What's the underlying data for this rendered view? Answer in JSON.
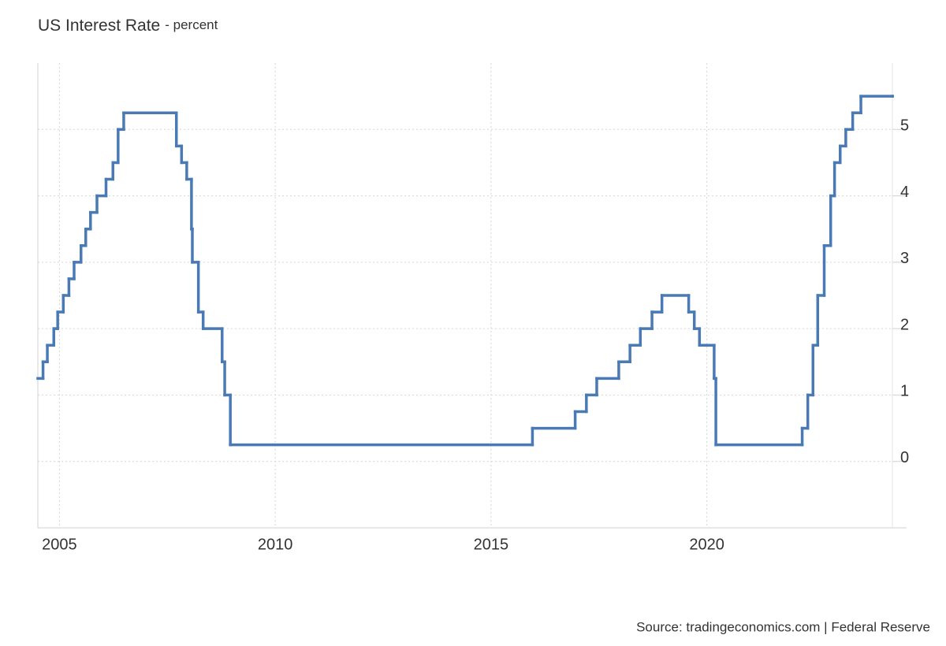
{
  "chart_data": {
    "type": "line",
    "step": true,
    "title": "US Interest Rate",
    "subtitle": "- percent",
    "source": "Source: tradingeconomics.com | Federal Reserve",
    "x": [
      2004.5,
      2004.62,
      2004.72,
      2004.87,
      2004.96,
      2005.09,
      2005.22,
      2005.34,
      2005.5,
      2005.61,
      2005.72,
      2005.87,
      2006.08,
      2006.24,
      2006.36,
      2006.49,
      2007.71,
      2007.83,
      2007.95,
      2008.06,
      2008.08,
      2008.22,
      2008.33,
      2008.77,
      2008.83,
      2008.96,
      2015.96,
      2016.95,
      2017.21,
      2017.45,
      2017.96,
      2018.22,
      2018.46,
      2018.73,
      2018.96,
      2019.58,
      2019.71,
      2019.83,
      2020.17,
      2020.21,
      2022.21,
      2022.34,
      2022.46,
      2022.57,
      2022.72,
      2022.87,
      2022.96,
      2023.09,
      2023.22,
      2023.38,
      2023.57,
      2024.3
    ],
    "series": [
      {
        "name": "US Interest Rate",
        "color": "#4a7ab5",
        "values": [
          1.25,
          1.5,
          1.75,
          2.0,
          2.25,
          2.5,
          2.75,
          3.0,
          3.25,
          3.5,
          3.75,
          4.0,
          4.25,
          4.5,
          5.0,
          5.25,
          4.75,
          4.5,
          4.25,
          3.5,
          3.0,
          2.25,
          2.0,
          1.5,
          1.0,
          0.25,
          0.5,
          0.75,
          1.0,
          1.25,
          1.5,
          1.75,
          2.0,
          2.25,
          2.5,
          2.25,
          2.0,
          1.75,
          1.25,
          0.25,
          0.5,
          1.0,
          1.75,
          2.5,
          3.25,
          4.0,
          4.5,
          4.75,
          5.0,
          5.25,
          5.5,
          5.5
        ]
      }
    ],
    "xlim": [
      2004.5,
      2024.3
    ],
    "xticks": [
      2005,
      2010,
      2015,
      2020
    ],
    "ylim": [
      -1,
      6
    ],
    "yticks": [
      0,
      1,
      2,
      3,
      4,
      5
    ],
    "grid": true
  }
}
